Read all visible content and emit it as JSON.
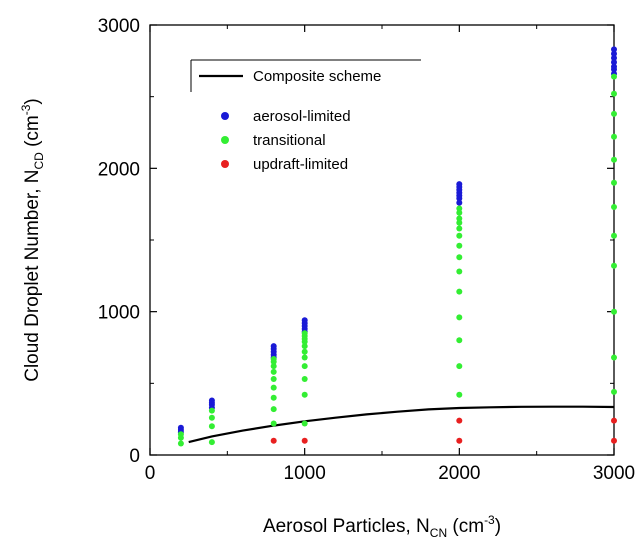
{
  "chart_data": {
    "type": "scatter",
    "xlabel": "Aerosol Particles, N_CN (cm^-3)",
    "xlabel_parts": {
      "main": "Aerosol Particles, N",
      "sub": "CN",
      "unit_open": " (cm",
      "sup": "-3",
      "unit_close": ")"
    },
    "ylabel": "Cloud Droplet Number, N_CD (cm^-3)",
    "ylabel_parts": {
      "main": "Cloud Droplet Number, N",
      "sub": "CD",
      "unit_open": " (cm",
      "sup": "-3",
      "unit_close": ")"
    },
    "xlim": [
      0,
      3000
    ],
    "ylim": [
      0,
      3000
    ],
    "x_ticks": [
      0,
      1000,
      2000,
      3000
    ],
    "y_ticks": [
      0,
      1000,
      2000,
      3000
    ],
    "x_tick_labels": [
      "0",
      "1000",
      "2000",
      "3000"
    ],
    "y_tick_labels": [
      "0",
      "1000",
      "2000",
      "3000"
    ],
    "legend_position": "top-left",
    "legend": [
      {
        "key": "composite",
        "label": "Composite scheme",
        "kind": "line",
        "color": "#000000"
      },
      {
        "key": "aerosol",
        "label": "aerosol-limited",
        "kind": "marker",
        "color": "#1a1ad6"
      },
      {
        "key": "transitional",
        "label": "transitional",
        "kind": "marker",
        "color": "#33ee33"
      },
      {
        "key": "updraft",
        "label": "updraft-limited",
        "kind": "marker",
        "color": "#e82020"
      }
    ],
    "series": [
      {
        "key": "aerosol",
        "color": "#1a1ad6",
        "points": [
          [
            200,
            160
          ],
          [
            200,
            175
          ],
          [
            200,
            190
          ],
          [
            400,
            330
          ],
          [
            400,
            350
          ],
          [
            400,
            365
          ],
          [
            400,
            380
          ],
          [
            800,
            680
          ],
          [
            800,
            700
          ],
          [
            800,
            720
          ],
          [
            800,
            740
          ],
          [
            800,
            760
          ],
          [
            1000,
            860
          ],
          [
            1000,
            880
          ],
          [
            1000,
            900
          ],
          [
            1000,
            920
          ],
          [
            1000,
            940
          ],
          [
            2000,
            1760
          ],
          [
            2000,
            1790
          ],
          [
            2000,
            1810
          ],
          [
            2000,
            1830
          ],
          [
            2000,
            1850
          ],
          [
            2000,
            1870
          ],
          [
            2000,
            1890
          ],
          [
            3000,
            2660
          ],
          [
            3000,
            2690
          ],
          [
            3000,
            2710
          ],
          [
            3000,
            2740
          ],
          [
            3000,
            2770
          ],
          [
            3000,
            2800
          ],
          [
            3000,
            2830
          ]
        ]
      },
      {
        "key": "transitional",
        "color": "#33ee33",
        "points": [
          [
            200,
            80
          ],
          [
            200,
            120
          ],
          [
            200,
            145
          ],
          [
            400,
            90
          ],
          [
            400,
            200
          ],
          [
            400,
            260
          ],
          [
            400,
            310
          ],
          [
            800,
            220
          ],
          [
            800,
            320
          ],
          [
            800,
            400
          ],
          [
            800,
            470
          ],
          [
            800,
            530
          ],
          [
            800,
            580
          ],
          [
            800,
            620
          ],
          [
            800,
            650
          ],
          [
            800,
            670
          ],
          [
            1000,
            220
          ],
          [
            1000,
            420
          ],
          [
            1000,
            530
          ],
          [
            1000,
            620
          ],
          [
            1000,
            680
          ],
          [
            1000,
            720
          ],
          [
            1000,
            760
          ],
          [
            1000,
            790
          ],
          [
            1000,
            810
          ],
          [
            1000,
            830
          ],
          [
            1000,
            850
          ],
          [
            2000,
            420
          ],
          [
            2000,
            620
          ],
          [
            2000,
            800
          ],
          [
            2000,
            960
          ],
          [
            2000,
            1140
          ],
          [
            2000,
            1280
          ],
          [
            2000,
            1380
          ],
          [
            2000,
            1460
          ],
          [
            2000,
            1530
          ],
          [
            2000,
            1580
          ],
          [
            2000,
            1620
          ],
          [
            2000,
            1650
          ],
          [
            2000,
            1690
          ],
          [
            2000,
            1720
          ],
          [
            3000,
            440
          ],
          [
            3000,
            680
          ],
          [
            3000,
            1000
          ],
          [
            3000,
            1320
          ],
          [
            3000,
            1530
          ],
          [
            3000,
            1730
          ],
          [
            3000,
            1900
          ],
          [
            3000,
            2060
          ],
          [
            3000,
            2220
          ],
          [
            3000,
            2380
          ],
          [
            3000,
            2520
          ],
          [
            3000,
            2640
          ]
        ]
      },
      {
        "key": "updraft",
        "color": "#e82020",
        "points": [
          [
            800,
            100
          ],
          [
            1000,
            100
          ],
          [
            2000,
            100
          ],
          [
            2000,
            240
          ],
          [
            3000,
            100
          ],
          [
            3000,
            240
          ]
        ]
      }
    ],
    "composite_line": {
      "key": "composite",
      "color": "#000000",
      "points": [
        [
          250,
          90
        ],
        [
          400,
          130
        ],
        [
          600,
          170
        ],
        [
          800,
          205
        ],
        [
          1000,
          235
        ],
        [
          1200,
          260
        ],
        [
          1400,
          283
        ],
        [
          1600,
          302
        ],
        [
          1800,
          318
        ],
        [
          2000,
          328
        ],
        [
          2200,
          333
        ],
        [
          2400,
          336
        ],
        [
          2600,
          337
        ],
        [
          2800,
          337
        ],
        [
          3000,
          335
        ]
      ]
    }
  }
}
